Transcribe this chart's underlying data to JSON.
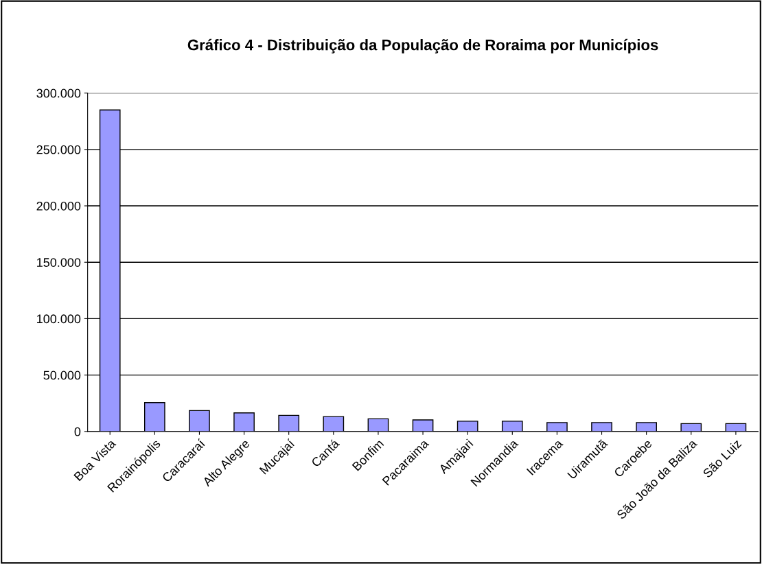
{
  "chart_data": {
    "type": "bar",
    "title": "Gráfico 4 - Distribuição da População de Roraima por Municípios",
    "categories": [
      "Boa Vista",
      "Rorainópolis",
      "Caracaraí",
      "Alto Alegre",
      "Mucajaí",
      "Cantá",
      "Bonfim",
      "Pacaraima",
      "Amajari",
      "Normandia",
      "Iracema",
      "Uiramutã",
      "Caroebe",
      "São João da Baliza",
      "São Luiz"
    ],
    "values": [
      285000,
      25600,
      18500,
      16500,
      14300,
      13200,
      11200,
      10200,
      9100,
      9100,
      7900,
      7900,
      7900,
      7000,
      7000
    ],
    "color": "#9999ff",
    "ylim": [
      0,
      300000
    ],
    "yticks": [
      {
        "value": 0,
        "label": "0"
      },
      {
        "value": 50000,
        "label": "50.000"
      },
      {
        "value": 100000,
        "label": "100.000"
      },
      {
        "value": 150000,
        "label": "150.000"
      },
      {
        "value": 200000,
        "label": "200.000"
      },
      {
        "value": 250000,
        "label": "250.000"
      },
      {
        "value": 300000,
        "label": "300.000"
      }
    ],
    "grid": "y",
    "legend": false
  }
}
